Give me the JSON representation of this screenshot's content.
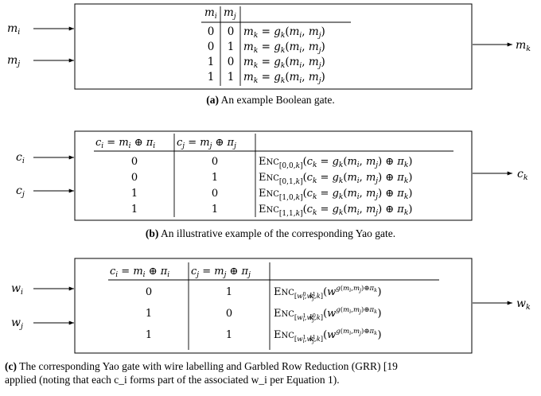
{
  "diagram_a": {
    "inputs": [
      "m_i",
      "m_j"
    ],
    "output": "m_k",
    "headers": [
      "m_i",
      "m_j"
    ],
    "rows": [
      {
        "a": "0",
        "b": "0",
        "expr": "m_k = g_k(m_i, m_j)"
      },
      {
        "a": "0",
        "b": "1",
        "expr": "m_k = g_k(m_i, m_j)"
      },
      {
        "a": "1",
        "b": "0",
        "expr": "m_k = g_k(m_i, m_j)"
      },
      {
        "a": "1",
        "b": "1",
        "expr": "m_k = g_k(m_i, m_j)"
      }
    ],
    "caption_label": "(a)",
    "caption_text": "An example Boolean gate."
  },
  "diagram_b": {
    "inputs": [
      "c_i",
      "c_j"
    ],
    "output": "c_k",
    "headers": [
      "c_i = m_i ⊕ π_i",
      "c_j = m_j ⊕ π_j"
    ],
    "rows": [
      {
        "a": "0",
        "b": "0",
        "expr": "Enc_[0,0,k](c_k = g_k(m_i, m_j) ⊕ π_k)"
      },
      {
        "a": "0",
        "b": "1",
        "expr": "Enc_[0,1,k](c_k = g_k(m_i, m_j) ⊕ π_k)"
      },
      {
        "a": "1",
        "b": "0",
        "expr": "Enc_[1,0,k](c_k = g_k(m_i, m_j) ⊕ π_k)"
      },
      {
        "a": "1",
        "b": "1",
        "expr": "Enc_[1,1,k](c_k = g_k(m_i, m_j) ⊕ π_k)"
      }
    ],
    "caption_label": "(b)",
    "caption_text": "An illustrative example of the corresponding Yao gate."
  },
  "diagram_c": {
    "inputs": [
      "w_i",
      "w_j"
    ],
    "output": "w_k",
    "headers": [
      "c_i = m_i ⊕ π_i",
      "c_j = m_j ⊕ π_j"
    ],
    "rows": [
      {
        "a": "0",
        "b": "1",
        "expr": "Enc_[w_i^0, w_j^1, k](w_k^{g(m_i,m_j)⊕π_k})"
      },
      {
        "a": "1",
        "b": "0",
        "expr": "Enc_[w_i^1, w_j^0, k](w_k^{g(m_i,m_j)⊕π_k})"
      },
      {
        "a": "1",
        "b": "1",
        "expr": "Enc_[w_i^1, w_j^1, k](w_k^{g(m_i,m_j)⊕π_k})"
      }
    ],
    "caption_label": "(c)",
    "caption_line1": "The corresponding Yao gate with wire labelling and Garbled Row Reduction (GRR) [19",
    "caption_line2": "applied (noting that each c_i forms part of the associated w_i per Equation 1)."
  }
}
